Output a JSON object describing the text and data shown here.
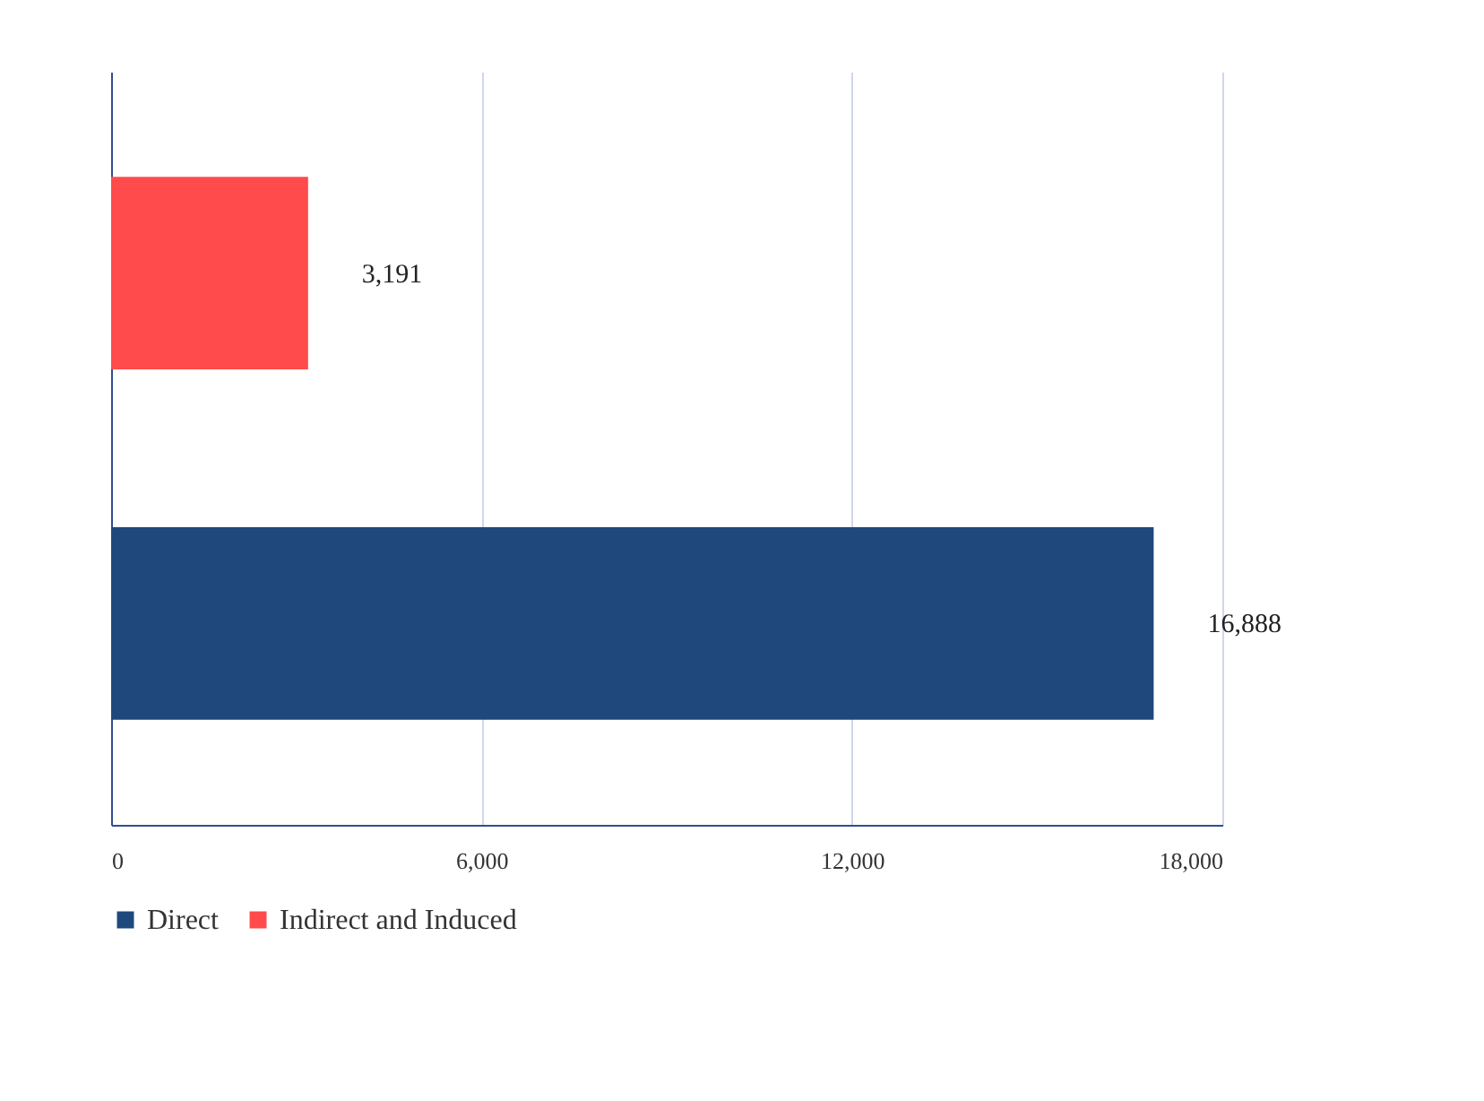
{
  "chart_data": {
    "type": "bar",
    "orientation": "horizontal",
    "categories": [
      null,
      null
    ],
    "series": [
      {
        "name": "Direct",
        "color": "#1f497d",
        "values": [
          null,
          16888
        ],
        "value_labels": [
          null,
          "16,888"
        ]
      },
      {
        "name": "Indirect and Induced",
        "color": "#ff4b4b",
        "values": [
          3191,
          null
        ],
        "value_labels": [
          "3,191",
          null
        ]
      }
    ],
    "xlim": [
      0,
      18000
    ],
    "xticks": [
      0,
      {
        "value": 6000,
        "label": "6,000"
      },
      {
        "value": 12000,
        "label": "12,000"
      },
      {
        "value": 18000,
        "label": "18,000"
      }
    ],
    "grid": "x",
    "legend": "bottom"
  }
}
